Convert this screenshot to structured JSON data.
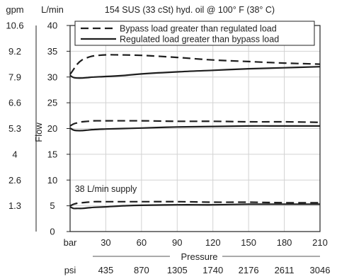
{
  "chart_data": {
    "type": "line",
    "title": "154 SUS (33 cSt) hyd. oil @ 100° F (38° C)",
    "xlabel": "Pressure",
    "ylabel": "Flow",
    "xlim": [
      0,
      210
    ],
    "ylim": [
      0,
      40
    ],
    "grid": true,
    "legend_position": "top-right",
    "x_unit_label": "bar",
    "x_secondary_unit_label": "psi",
    "y_unit_label": "L/min",
    "y_secondary_unit_label": "gpm",
    "x_ticks": [
      30,
      60,
      90,
      120,
      150,
      180,
      210
    ],
    "x_secondary_ticks": [
      "435",
      "870",
      "1305",
      "1740",
      "2176",
      "2611",
      "3046"
    ],
    "y_ticks": [
      0,
      5,
      10,
      15,
      20,
      25,
      30,
      35,
      40
    ],
    "y_secondary_ticks": [
      "1.3",
      "2.6",
      "4",
      "5.3",
      "6.6",
      "7.9",
      "9.2",
      "10.6"
    ],
    "y_secondary_tick_values": [
      5,
      10,
      15,
      20,
      25,
      30,
      35,
      40
    ],
    "annotation": "38 L/min supply",
    "series": [
      {
        "name": "Bypass load greater than regulated load",
        "style": "dashed",
        "groups": [
          {
            "x": [
              0,
              3,
              6,
              10,
              15,
              20,
              30,
              40,
              60,
              90,
              120,
              150,
              180,
              210
            ],
            "y": [
              30.5,
              31.5,
              32.5,
              33.3,
              33.8,
              34.1,
              34.3,
              34.3,
              34.2,
              33.8,
              33.3,
              33.0,
              32.7,
              32.5
            ]
          },
          {
            "x": [
              0,
              3,
              6,
              10,
              15,
              20,
              30,
              60,
              90,
              120,
              150,
              180,
              210
            ],
            "y": [
              20.5,
              20.9,
              21.1,
              21.3,
              21.4,
              21.5,
              21.5,
              21.5,
              21.4,
              21.4,
              21.3,
              21.3,
              21.2
            ]
          },
          {
            "x": [
              0,
              3,
              6,
              10,
              15,
              20,
              30,
              60,
              90,
              120,
              150,
              180,
              210
            ],
            "y": [
              5.0,
              5.3,
              5.5,
              5.6,
              5.7,
              5.8,
              5.8,
              5.8,
              5.8,
              5.7,
              5.7,
              5.6,
              5.6
            ]
          }
        ]
      },
      {
        "name": "Regulated load greater than bypass load",
        "style": "solid",
        "groups": [
          {
            "x": [
              0,
              3,
              6,
              10,
              15,
              20,
              30,
              45,
              60,
              90,
              120,
              150,
              180,
              210
            ],
            "y": [
              30.3,
              29.9,
              29.8,
              29.8,
              29.9,
              30.0,
              30.1,
              30.3,
              30.6,
              31.0,
              31.3,
              31.6,
              31.8,
              32.0
            ]
          },
          {
            "x": [
              0,
              3,
              6,
              10,
              15,
              20,
              30,
              45,
              60,
              90,
              120,
              150,
              180,
              210
            ],
            "y": [
              20.1,
              19.7,
              19.6,
              19.6,
              19.7,
              19.8,
              19.9,
              20.0,
              20.1,
              20.3,
              20.4,
              20.5,
              20.5,
              20.5
            ]
          },
          {
            "x": [
              0,
              3,
              6,
              10,
              15,
              20,
              30,
              45,
              60,
              90,
              120,
              150,
              180,
              210
            ],
            "y": [
              4.8,
              4.5,
              4.5,
              4.5,
              4.6,
              4.7,
              4.8,
              5.0,
              5.1,
              5.2,
              5.2,
              5.3,
              5.3,
              5.3
            ]
          }
        ]
      }
    ]
  }
}
